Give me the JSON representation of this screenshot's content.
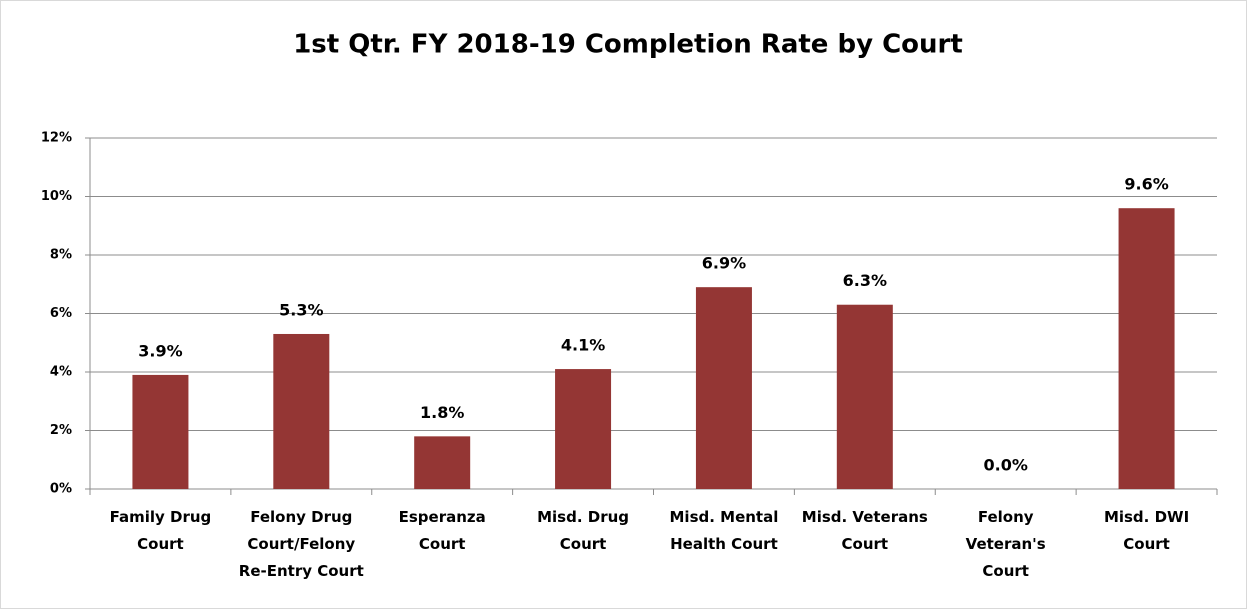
{
  "chart_data": {
    "type": "bar",
    "title": "1st Qtr. FY 2018-19 Completion Rate by Court",
    "categories": [
      "Family Drug\nCourt",
      "Felony Drug\nCourt/Felony\nRe-Entry Court",
      "Esperanza\nCourt",
      "Misd. Drug\nCourt",
      "Misd. Mental\nHealth Court",
      "Misd. Veterans\nCourt",
      "Felony\nVeteran's\nCourt",
      "Misd. DWI\nCourt"
    ],
    "values": [
      3.9,
      5.3,
      1.8,
      4.1,
      6.9,
      6.3,
      0.0,
      9.6
    ],
    "value_labels": [
      "3.9%",
      "5.3%",
      "1.8%",
      "4.1%",
      "6.9%",
      "6.3%",
      "0.0%",
      "9.6%"
    ],
    "color": "#943634",
    "ylim": [
      0,
      12
    ],
    "yticks": [
      {
        "value": 0,
        "label": "0%"
      },
      {
        "value": 2,
        "label": "2%"
      },
      {
        "value": 4,
        "label": "4%"
      },
      {
        "value": 6,
        "label": "6%"
      },
      {
        "value": 8,
        "label": "8%"
      },
      {
        "value": 10,
        "label": "10%"
      },
      {
        "value": 12,
        "label": "12%"
      }
    ],
    "grid": true
  }
}
